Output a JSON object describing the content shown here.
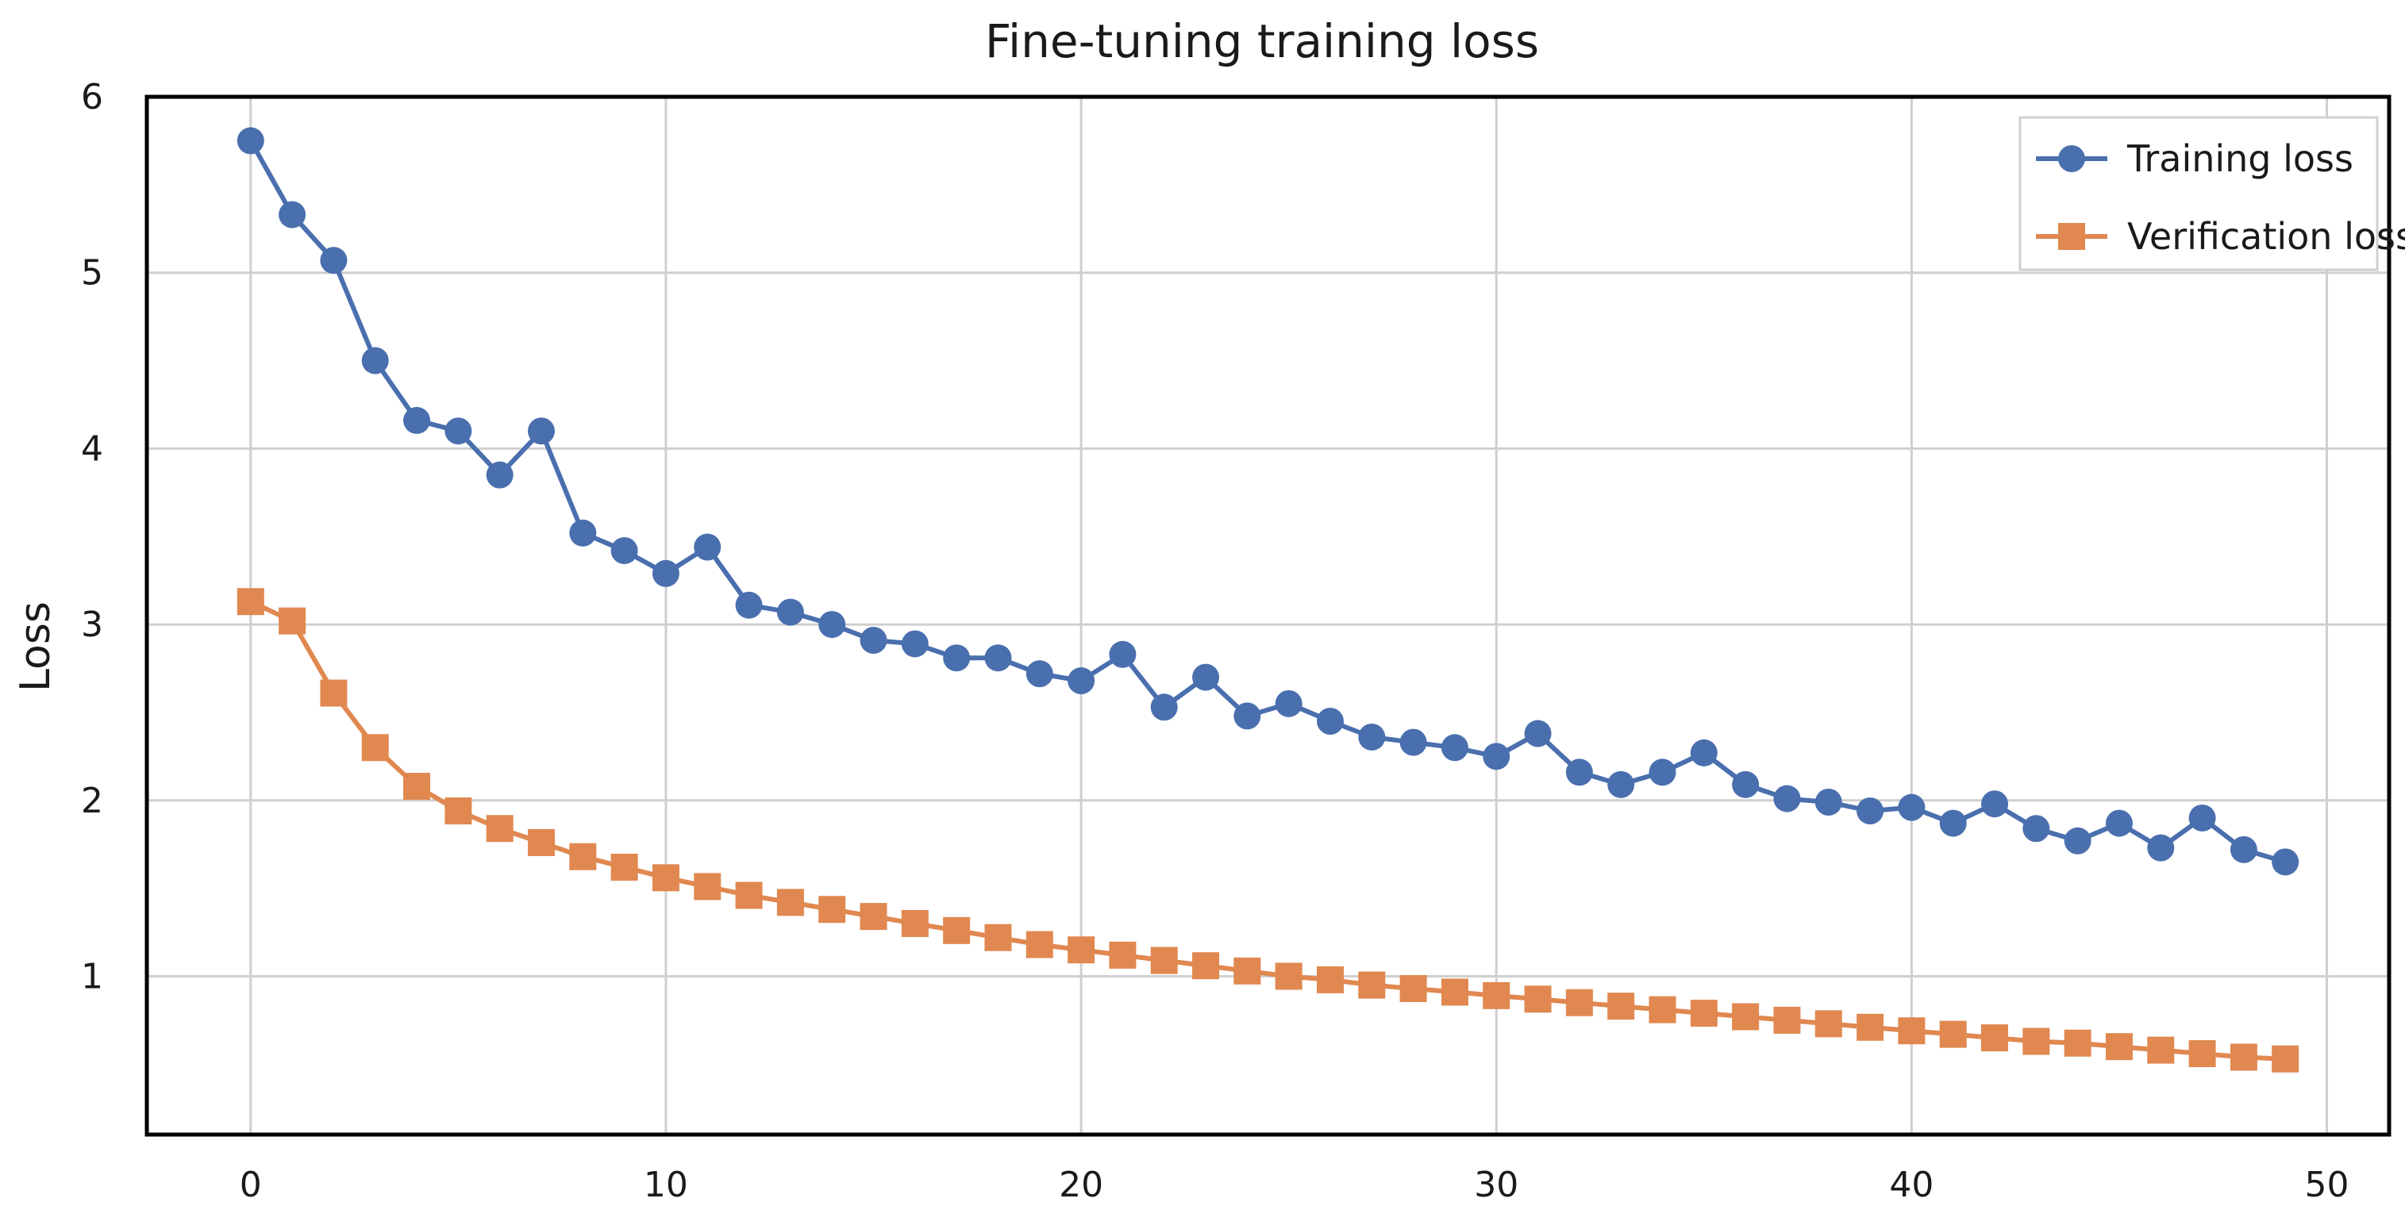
{
  "chart_data": {
    "type": "line",
    "title": "Fine-tuning training loss",
    "xlabel": "",
    "ylabel": "Loss",
    "xlim": [
      -2.5,
      51.5
    ],
    "ylim": [
      0.1,
      6.0
    ],
    "xticks": [
      0,
      10,
      20,
      30,
      40,
      50
    ],
    "yticks": [
      1,
      2,
      3,
      4,
      5,
      6
    ],
    "grid": true,
    "legend_position": "top-right",
    "x": [
      0,
      1,
      2,
      3,
      4,
      5,
      6,
      7,
      8,
      9,
      10,
      11,
      12,
      13,
      14,
      15,
      16,
      17,
      18,
      19,
      20,
      21,
      22,
      23,
      24,
      25,
      26,
      27,
      28,
      29,
      30,
      31,
      32,
      33,
      34,
      35,
      36,
      37,
      38,
      39,
      40,
      41,
      42,
      43,
      44,
      45,
      46,
      47,
      48,
      49
    ],
    "series": [
      {
        "name": "Training loss",
        "marker": "circle",
        "color": "#4a6fae",
        "values": [
          5.75,
          5.33,
          5.07,
          4.5,
          4.16,
          4.1,
          3.85,
          4.1,
          3.52,
          3.42,
          3.29,
          3.44,
          3.11,
          3.07,
          3.0,
          2.91,
          2.89,
          2.81,
          2.81,
          2.72,
          2.68,
          2.83,
          2.53,
          2.7,
          2.48,
          2.55,
          2.45,
          2.36,
          2.33,
          2.3,
          2.25,
          2.38,
          2.16,
          2.09,
          2.16,
          2.27,
          2.09,
          2.01,
          1.99,
          1.94,
          1.96,
          1.87,
          1.98,
          1.84,
          1.77,
          1.87,
          1.73,
          1.9,
          1.72,
          1.65
        ]
      },
      {
        "name": "Verification loss",
        "marker": "square",
        "color": "#e08850",
        "values": [
          3.13,
          3.02,
          2.61,
          2.3,
          2.08,
          1.94,
          1.84,
          1.76,
          1.68,
          1.62,
          1.56,
          1.51,
          1.46,
          1.42,
          1.38,
          1.34,
          1.3,
          1.26,
          1.22,
          1.18,
          1.15,
          1.12,
          1.09,
          1.06,
          1.03,
          1.0,
          0.98,
          0.95,
          0.93,
          0.91,
          0.89,
          0.87,
          0.85,
          0.83,
          0.81,
          0.79,
          0.77,
          0.75,
          0.73,
          0.71,
          0.69,
          0.67,
          0.65,
          0.63,
          0.62,
          0.6,
          0.58,
          0.56,
          0.54,
          0.53
        ]
      }
    ]
  }
}
